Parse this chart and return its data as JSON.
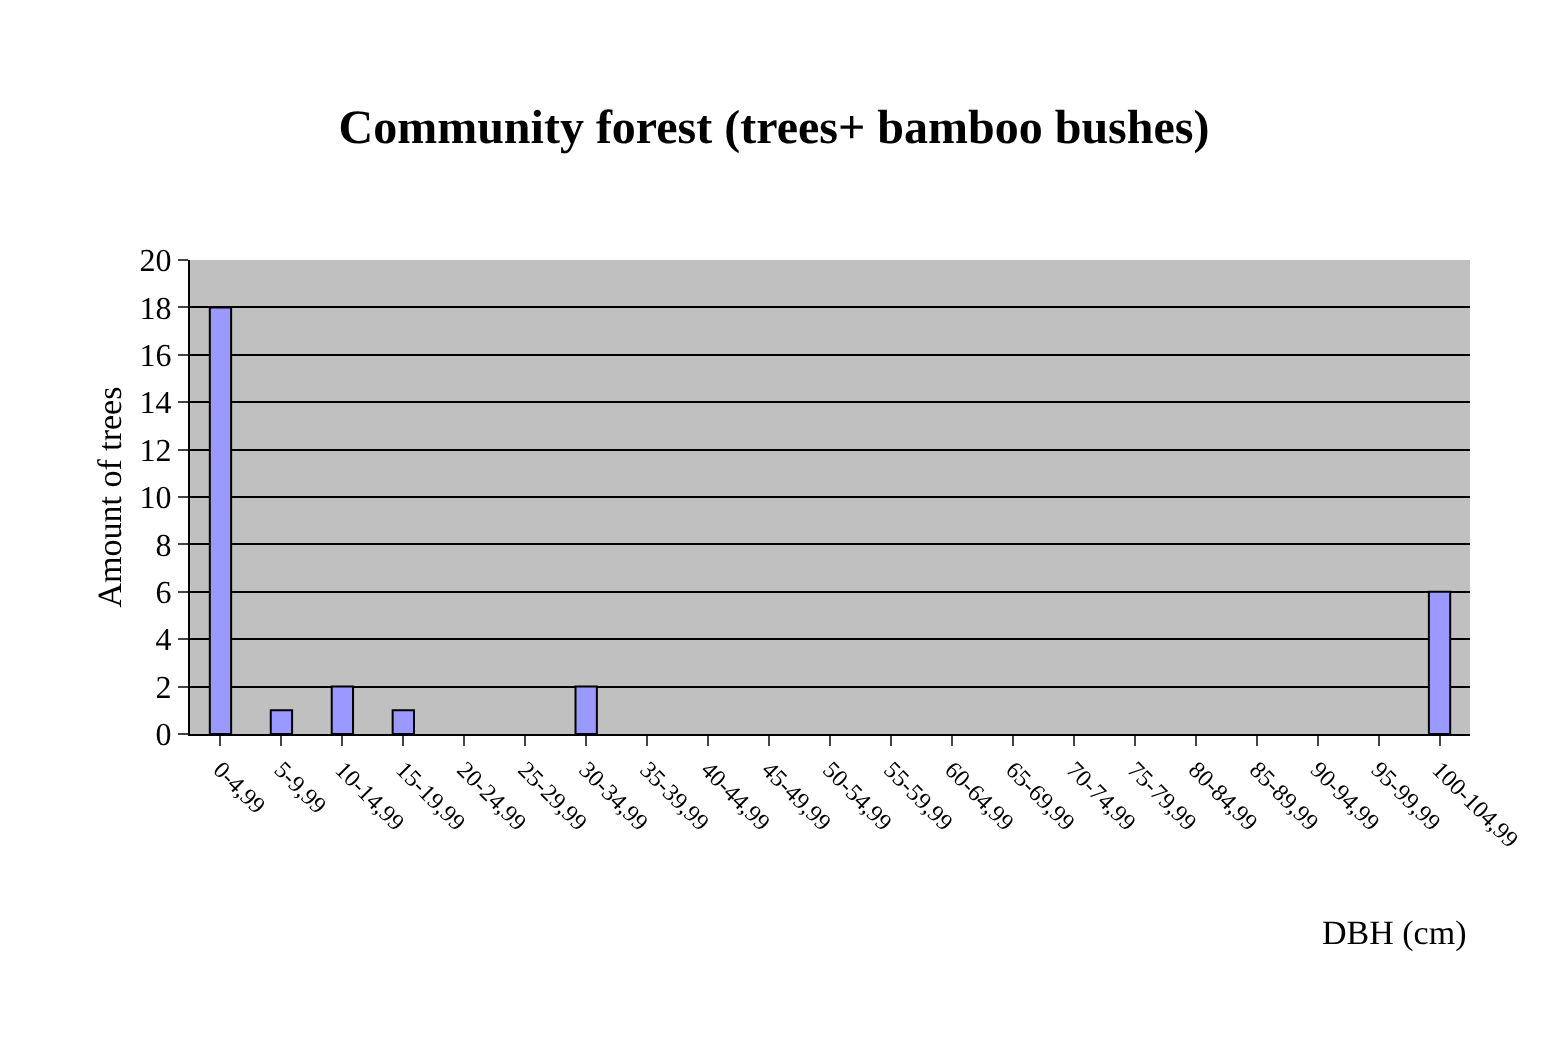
{
  "chart_data": {
    "type": "bar",
    "title": "Community forest (trees+ bamboo bushes)",
    "xlabel": "DBH (cm)",
    "ylabel": "Amount of trees",
    "categories": [
      "0-4,99",
      "5-9,99",
      "10-14,99",
      "15-19,99",
      "20-24,99",
      "25-29,99",
      "30-34,99",
      "35-39,99",
      "40-44,99",
      "45-49,99",
      "50-54,99",
      "55-59,99",
      "60-64,99",
      "65-69,99",
      "70-74,99",
      "75-79,99",
      "80-84,99",
      "85-89,99",
      "90-94,99",
      "95-99,99",
      "100-104,99"
    ],
    "values": [
      18,
      1,
      2,
      1,
      0,
      0,
      2,
      0,
      0,
      0,
      0,
      0,
      0,
      0,
      0,
      0,
      0,
      0,
      0,
      0,
      6
    ],
    "color": "#9999ff",
    "ylim": [
      0,
      20
    ],
    "yticks": [
      0,
      2,
      4,
      6,
      8,
      10,
      12,
      14,
      16,
      18,
      20
    ],
    "grid": "y",
    "legend": false
  }
}
